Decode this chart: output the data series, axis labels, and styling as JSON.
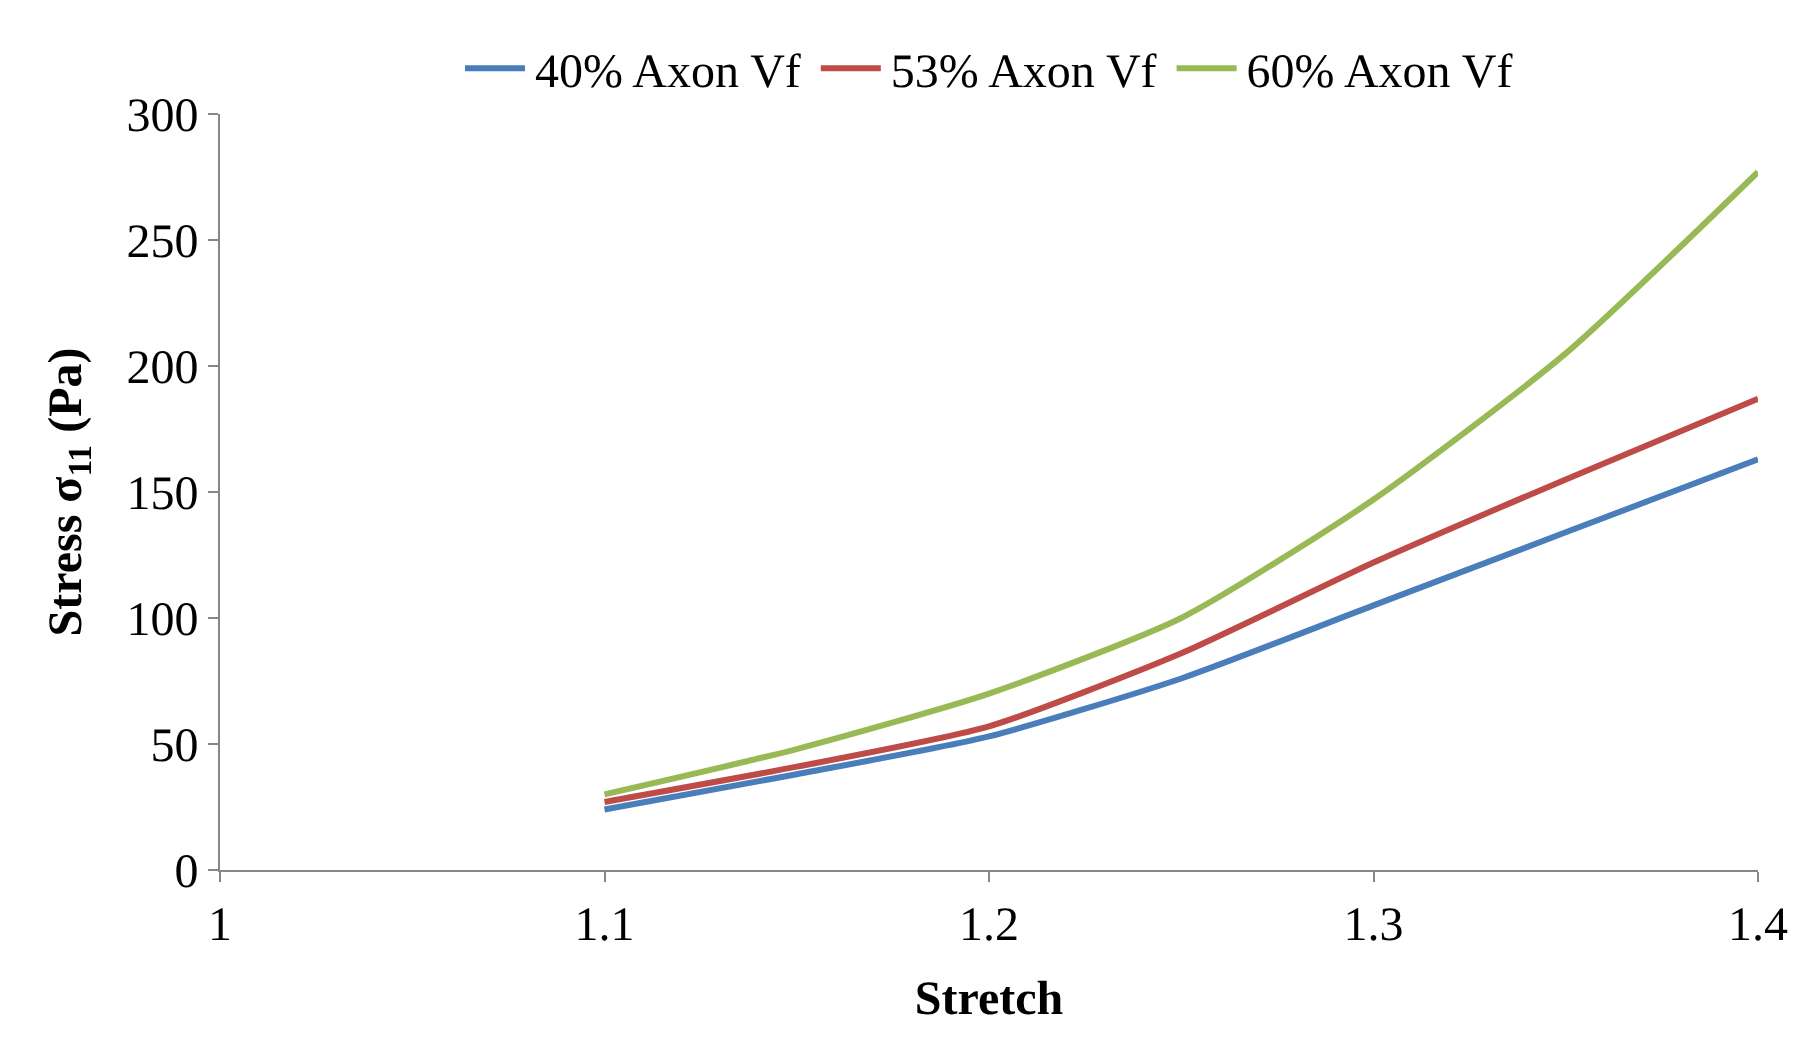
{
  "chart_data": {
    "type": "line",
    "xlabel": "Stretch",
    "ylabel": "Stress σ$_{11}$ (Pa)",
    "x": [
      1.1,
      1.15,
      1.2,
      1.25,
      1.3,
      1.35,
      1.4
    ],
    "series": [
      {
        "name": "40% Axon Vf",
        "color": "#4a7ebb",
        "values": [
          24,
          38,
          53,
          76,
          105,
          134,
          163
        ]
      },
      {
        "name": "53% Axon Vf",
        "color": "#be4b48",
        "values": [
          27,
          41,
          57,
          86,
          122,
          155,
          187
        ]
      },
      {
        "name": "60% Axon Vf",
        "color": "#98b954",
        "values": [
          30,
          48,
          70,
          100,
          147,
          205,
          277
        ]
      }
    ],
    "xlim": [
      1,
      1.4
    ],
    "xticks": [
      {
        "value": 1,
        "label": "1"
      },
      1.1,
      1.2,
      1.3,
      1.4
    ],
    "ylim": [
      0,
      300
    ],
    "yticks": [
      0,
      50,
      100,
      150,
      200,
      250,
      300
    ],
    "legend": "top",
    "marker": "none",
    "line_style": "solid"
  }
}
